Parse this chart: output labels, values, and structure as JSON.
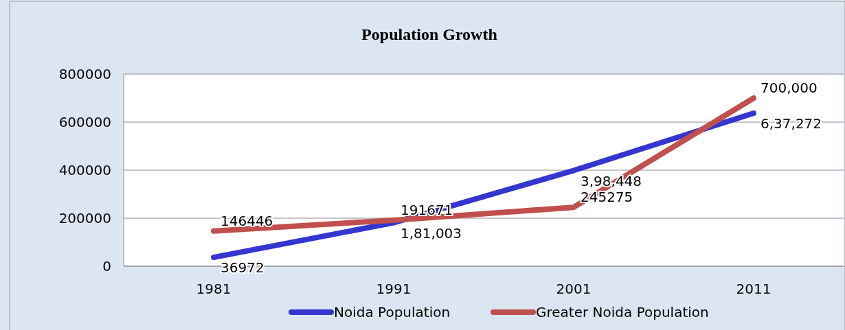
{
  "chart_data": {
    "type": "line",
    "title": "Population Growth",
    "categories": [
      "1981",
      "1991",
      "2001",
      "2011"
    ],
    "series": [
      {
        "name": "Noida Population",
        "color": "#3535d0",
        "values": [
          36972,
          181003,
          398448,
          637272
        ],
        "value_labels": [
          "36972",
          "1,81,003",
          "3,98,448",
          "6,37,272"
        ]
      },
      {
        "name": "Greater Noida Population",
        "color": "#c0504d",
        "values": [
          146446,
          191671,
          245275,
          700000
        ],
        "value_labels": [
          "146446",
          "191671",
          "245275",
          "700,000"
        ]
      }
    ],
    "ylim": [
      0,
      800000
    ],
    "yticks": [
      0,
      200000,
      400000,
      600000,
      800000
    ],
    "grid": "y",
    "legend": "bottom",
    "marker": "none",
    "line_style": "solid"
  }
}
